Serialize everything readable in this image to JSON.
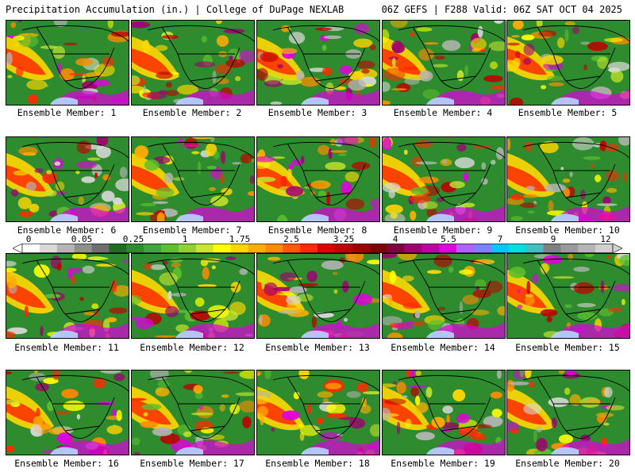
{
  "header": {
    "left_title": "Precipitation Accumulation (in.) | College of DuPage NEXLAB",
    "right_title": "06Z GEFS | F288 Valid: 06Z SAT OCT 04 2025"
  },
  "panels": [
    {
      "caption": "Ensemble Member: 1"
    },
    {
      "caption": "Ensemble Member: 2"
    },
    {
      "caption": "Ensemble Member: 3"
    },
    {
      "caption": "Ensemble Member: 4"
    },
    {
      "caption": "Ensemble Member: 5"
    },
    {
      "caption": "Ensemble Member: 6"
    },
    {
      "caption": "Ensemble Member: 7"
    },
    {
      "caption": "Ensemble Member: 8"
    },
    {
      "caption": "Ensemble Member: 9"
    },
    {
      "caption": "Ensemble Member: 10"
    },
    {
      "caption": "Ensemble Member: 11"
    },
    {
      "caption": "Ensemble Member: 12"
    },
    {
      "caption": "Ensemble Member: 13"
    },
    {
      "caption": "Ensemble Member: 14"
    },
    {
      "caption": "Ensemble Member: 15"
    },
    {
      "caption": "Ensemble Member: 16"
    },
    {
      "caption": "Ensemble Member: 17"
    },
    {
      "caption": "Ensemble Member: 18"
    },
    {
      "caption": "Ensemble Member: 19"
    },
    {
      "caption": "Ensemble Member: 20"
    }
  ],
  "colorbar": {
    "tick_labels": [
      "0",
      "0.05",
      "0.25",
      "1",
      "1.75",
      "2.5",
      "3.25",
      "4",
      "5.5",
      "7",
      "9",
      "12"
    ],
    "colors": [
      "#ffffff",
      "#d9d9d9",
      "#b5b5b5",
      "#8f8f8f",
      "#6e6e6e",
      "#1f6e1f",
      "#2e8b2e",
      "#3fa63f",
      "#5cbf2e",
      "#8fd12e",
      "#c8e62e",
      "#ffff00",
      "#ffd700",
      "#ffae00",
      "#ff8c00",
      "#ff5a00",
      "#ff2a00",
      "#e00000",
      "#c00000",
      "#a00000",
      "#800000",
      "#800040",
      "#a00070",
      "#c000a0",
      "#e000e0",
      "#b060ff",
      "#8080ff",
      "#00c8ff",
      "#00e0e0",
      "#40c0c0",
      "#808080",
      "#9a9a9a",
      "#b5b5b5",
      "#d0d0d0"
    ]
  }
}
